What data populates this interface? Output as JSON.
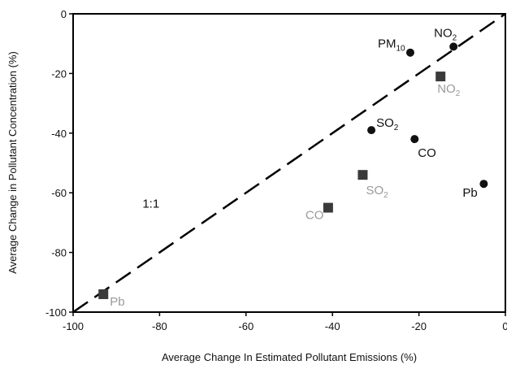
{
  "chart_data": {
    "type": "scatter",
    "title": "",
    "xlabel": "Average Change In Estimated Pollutant Emissions (%)",
    "ylabel": "Average Change in Pollutant Concentration (%)",
    "xlim": [
      -100,
      0
    ],
    "ylim": [
      -100,
      0
    ],
    "x_ticks": [
      "-100",
      "-80",
      "-60",
      "-40",
      "-20",
      "0"
    ],
    "y_ticks": [
      "0",
      "-20",
      "-40",
      "-60",
      "-80",
      "-100"
    ],
    "grid": false,
    "reference_line": {
      "label": "1:1",
      "from": [
        -100,
        -100
      ],
      "to": [
        0,
        0
      ],
      "style": "dashed"
    },
    "series": [
      {
        "marker": "circle",
        "color": "#111111",
        "points": [
          {
            "label": "PM",
            "sub": "10",
            "x": -22,
            "y": -13
          },
          {
            "label": "NO",
            "sub": "2",
            "x": -12,
            "y": -11
          },
          {
            "label": "SO",
            "sub": "2",
            "x": -31,
            "y": -39
          },
          {
            "label": "CO",
            "sub": "",
            "x": -21,
            "y": -42
          },
          {
            "label": "Pb",
            "sub": "",
            "x": -5,
            "y": -57
          }
        ]
      },
      {
        "marker": "square",
        "color": "#3a3a3a",
        "label_color": "#9a9a9a",
        "points": [
          {
            "label": "NO",
            "sub": "2",
            "x": -15,
            "y": -21
          },
          {
            "label": "SO",
            "sub": "2",
            "x": -33,
            "y": -54
          },
          {
            "label": "CO",
            "sub": "",
            "x": -41,
            "y": -65
          },
          {
            "label": "Pb",
            "sub": "",
            "x": -93,
            "y": -94
          }
        ]
      }
    ]
  }
}
